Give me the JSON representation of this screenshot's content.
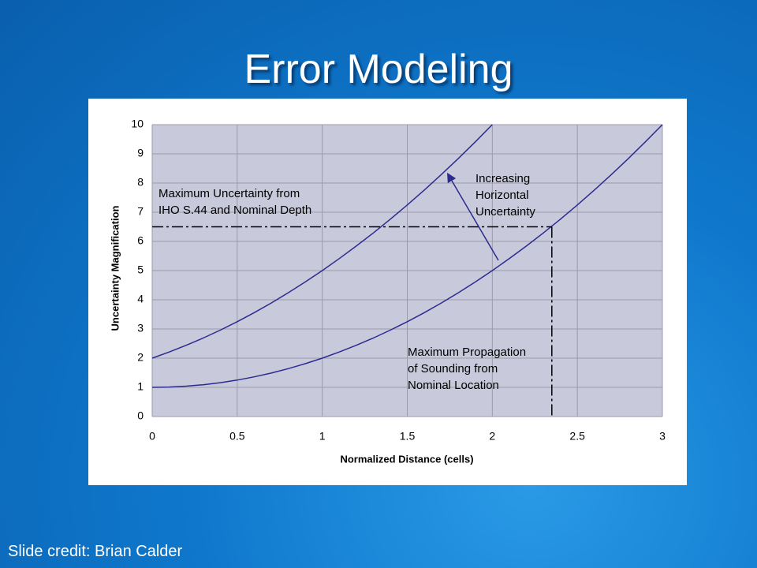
{
  "title": "Error Modeling",
  "credit": "Slide credit: Brian Calder",
  "chart_data": {
    "type": "line",
    "x_label": "Normalized Distance (cells)",
    "y_label": "Uncertainty Magnification",
    "x": [
      0,
      0.1,
      0.2,
      0.3,
      0.4,
      0.5,
      0.6,
      0.7,
      0.8,
      0.9,
      1,
      1.1,
      1.2,
      1.3,
      1.4,
      1.5,
      1.6,
      1.7,
      1.8,
      1.9,
      2,
      2.1,
      2.2,
      2.3,
      2.4,
      2.5,
      2.6,
      2.7,
      2.8,
      2.9,
      3
    ],
    "series": [
      {
        "color": "#2b2b8f",
        "values": [
          1,
          1.01,
          1.04,
          1.09,
          1.16,
          1.25,
          1.36,
          1.49,
          1.64,
          1.81,
          2,
          2.21,
          2.44,
          2.69,
          2.96,
          3.25,
          3.56,
          3.89,
          4.24,
          4.61,
          5,
          5.41,
          5.84,
          6.29,
          6.76,
          7.25,
          7.76,
          8.29,
          8.84,
          9.41,
          10
        ]
      },
      {
        "color": "#2b2b8f",
        "values": [
          2,
          2.21,
          2.44,
          2.69,
          2.96,
          3.25,
          3.56,
          3.89,
          4.24,
          4.61,
          5,
          5.41,
          5.84,
          6.29,
          6.76,
          7.25,
          7.76,
          8.29,
          8.84,
          9.41,
          10,
          null,
          null,
          null,
          null,
          null,
          null,
          null,
          null,
          null,
          null
        ]
      }
    ],
    "threshold": {
      "x": 2.35,
      "y": 6.5
    },
    "annotations": [
      [
        "Maximum Uncertainty from",
        "IHO S.44 and Nominal Depth"
      ],
      [
        "Increasing",
        "Horizontal",
        "Uncertainty"
      ],
      [
        "Maximum Propagation",
        "of Sounding from",
        "Nominal Location"
      ]
    ],
    "xlim": [
      0,
      3
    ],
    "ylim": [
      0,
      10
    ],
    "xticks": [
      0,
      0.5,
      1,
      1.5,
      2,
      2.5,
      3
    ],
    "yticks": [
      0,
      1,
      2,
      3,
      4,
      5,
      6,
      7,
      8,
      9,
      10
    ],
    "grid": true
  }
}
